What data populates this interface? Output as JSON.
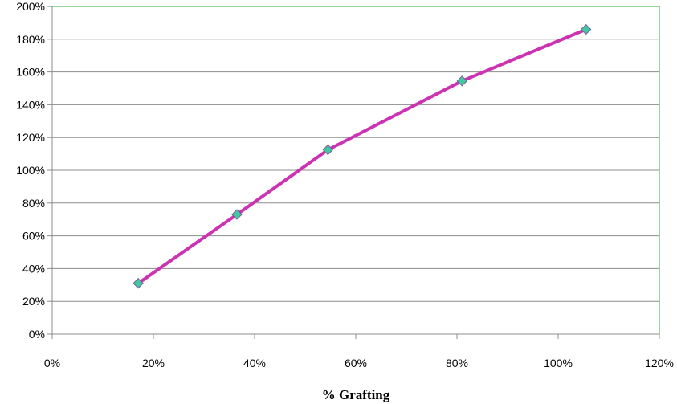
{
  "chart_data": {
    "type": "line",
    "title": "",
    "xlabel": "% Grafting",
    "ylabel": "",
    "xlim": [
      0,
      1.2
    ],
    "ylim": [
      0,
      2.0
    ],
    "x_ticks": [
      0,
      0.2,
      0.4,
      0.6,
      0.8,
      1.0,
      1.2
    ],
    "x_tick_labels": [
      "0%",
      "20%",
      "40%",
      "60%",
      "80%",
      "100%",
      "120%"
    ],
    "y_ticks": [
      0,
      0.2,
      0.4,
      0.6,
      0.8,
      1.0,
      1.2,
      1.4,
      1.6,
      1.8,
      2.0
    ],
    "y_tick_labels": [
      "0%",
      "20%",
      "40%",
      "60%",
      "80%",
      "100%",
      "120%",
      "140%",
      "160%",
      "180%",
      "200%"
    ],
    "grid": "horizontal",
    "legend": "none",
    "series": [
      {
        "x": [
          0.17,
          0.365,
          0.545,
          0.81,
          1.055
        ],
        "y": [
          0.31,
          0.73,
          1.125,
          1.545,
          1.86
        ],
        "line_color": "#cc33b3",
        "marker": "diamond",
        "marker_fill": "#40c8a0",
        "marker_stroke": "#7a5a9a"
      }
    ],
    "plot_border_color": "#33aa33",
    "grid_color": "#8c8c8c"
  }
}
